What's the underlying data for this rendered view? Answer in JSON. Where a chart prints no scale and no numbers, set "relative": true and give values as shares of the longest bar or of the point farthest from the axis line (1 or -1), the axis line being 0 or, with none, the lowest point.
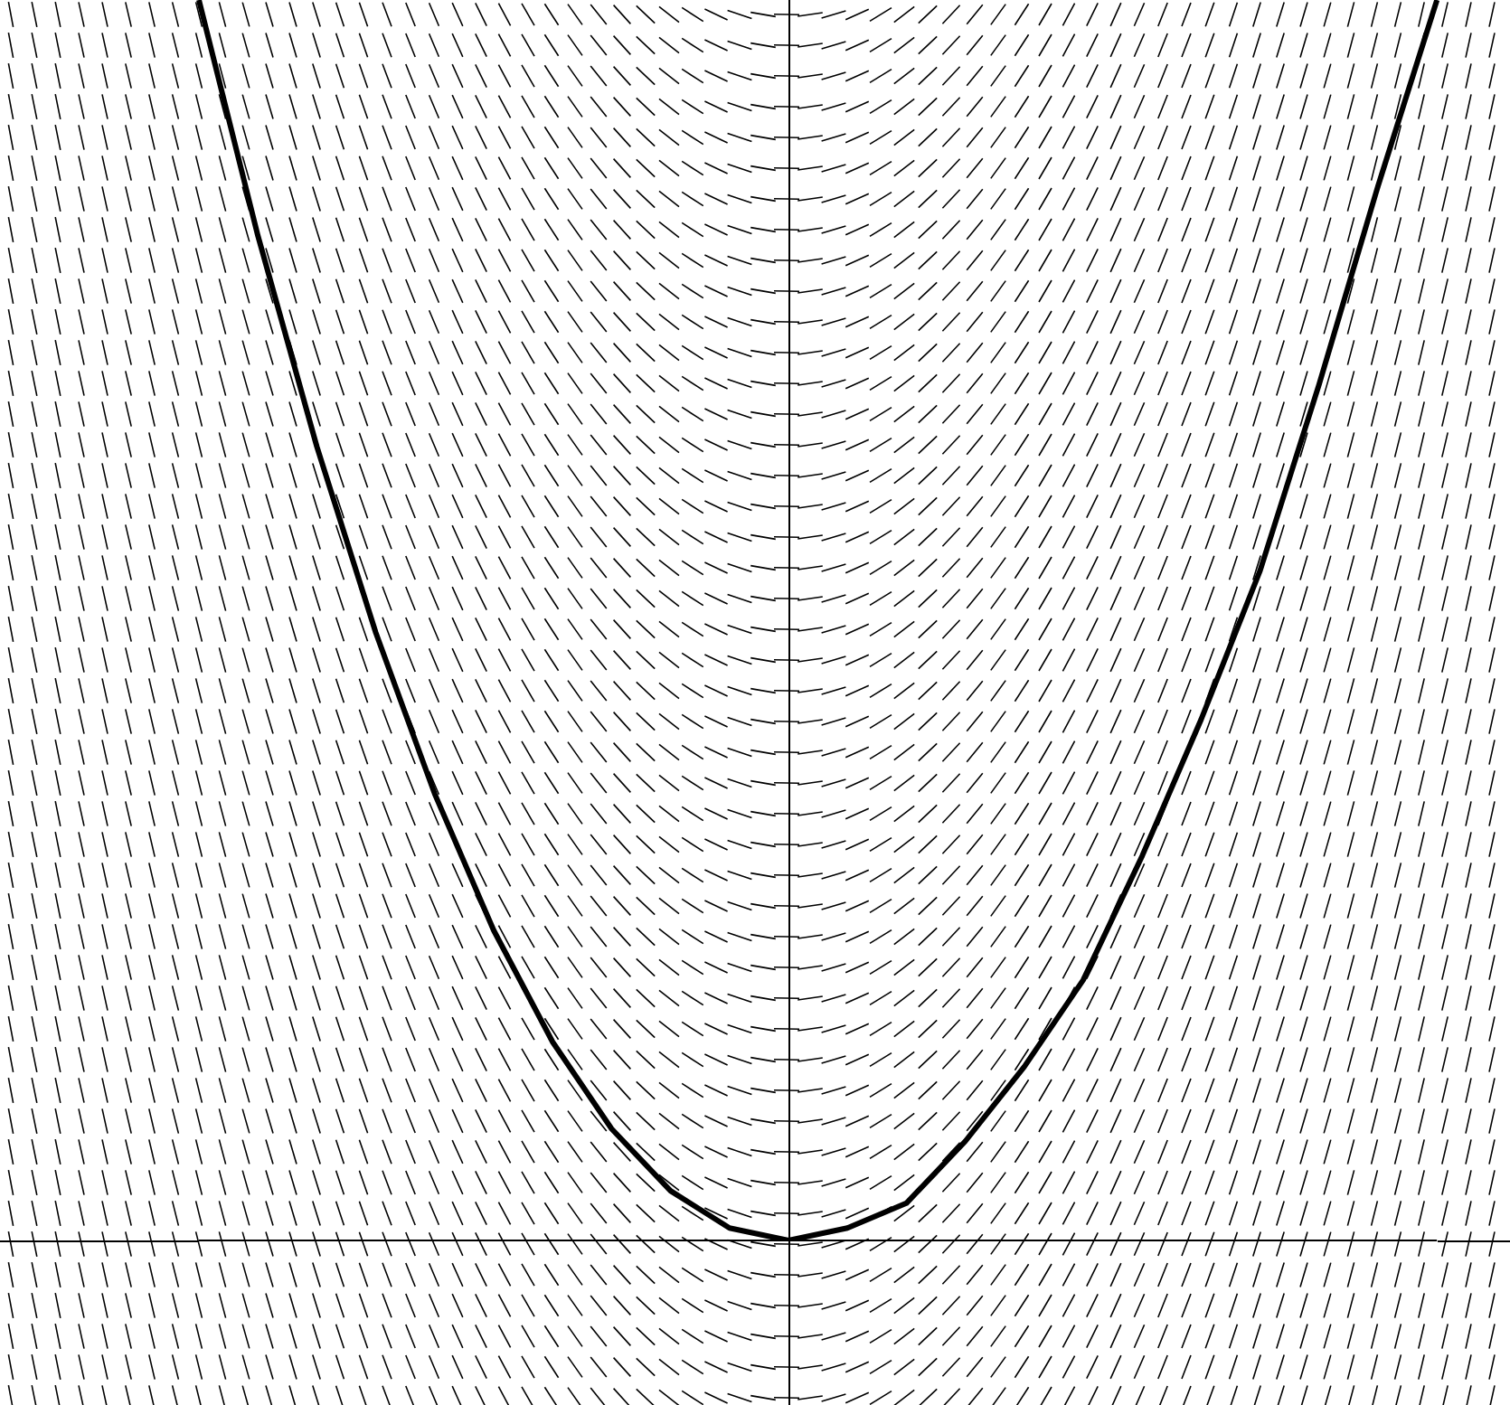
{
  "chart_data": {
    "type": "line",
    "relative": true,
    "categories": [
      null,
      null,
      null,
      null,
      null,
      null,
      null,
      null,
      null,
      null,
      null,
      null,
      null,
      null,
      null,
      null,
      null,
      null,
      null,
      null,
      null,
      null
    ],
    "values": [
      1,
      0.81,
      0.64,
      0.49,
      0.36,
      0.25,
      0.16,
      0.09,
      0.04,
      0.01,
      0,
      0.01,
      0.03,
      0.08,
      0.14,
      0.21,
      0.31,
      0.42,
      0.54,
      0.69,
      0.85,
      1
    ],
    "color": "#000000"
  }
}
